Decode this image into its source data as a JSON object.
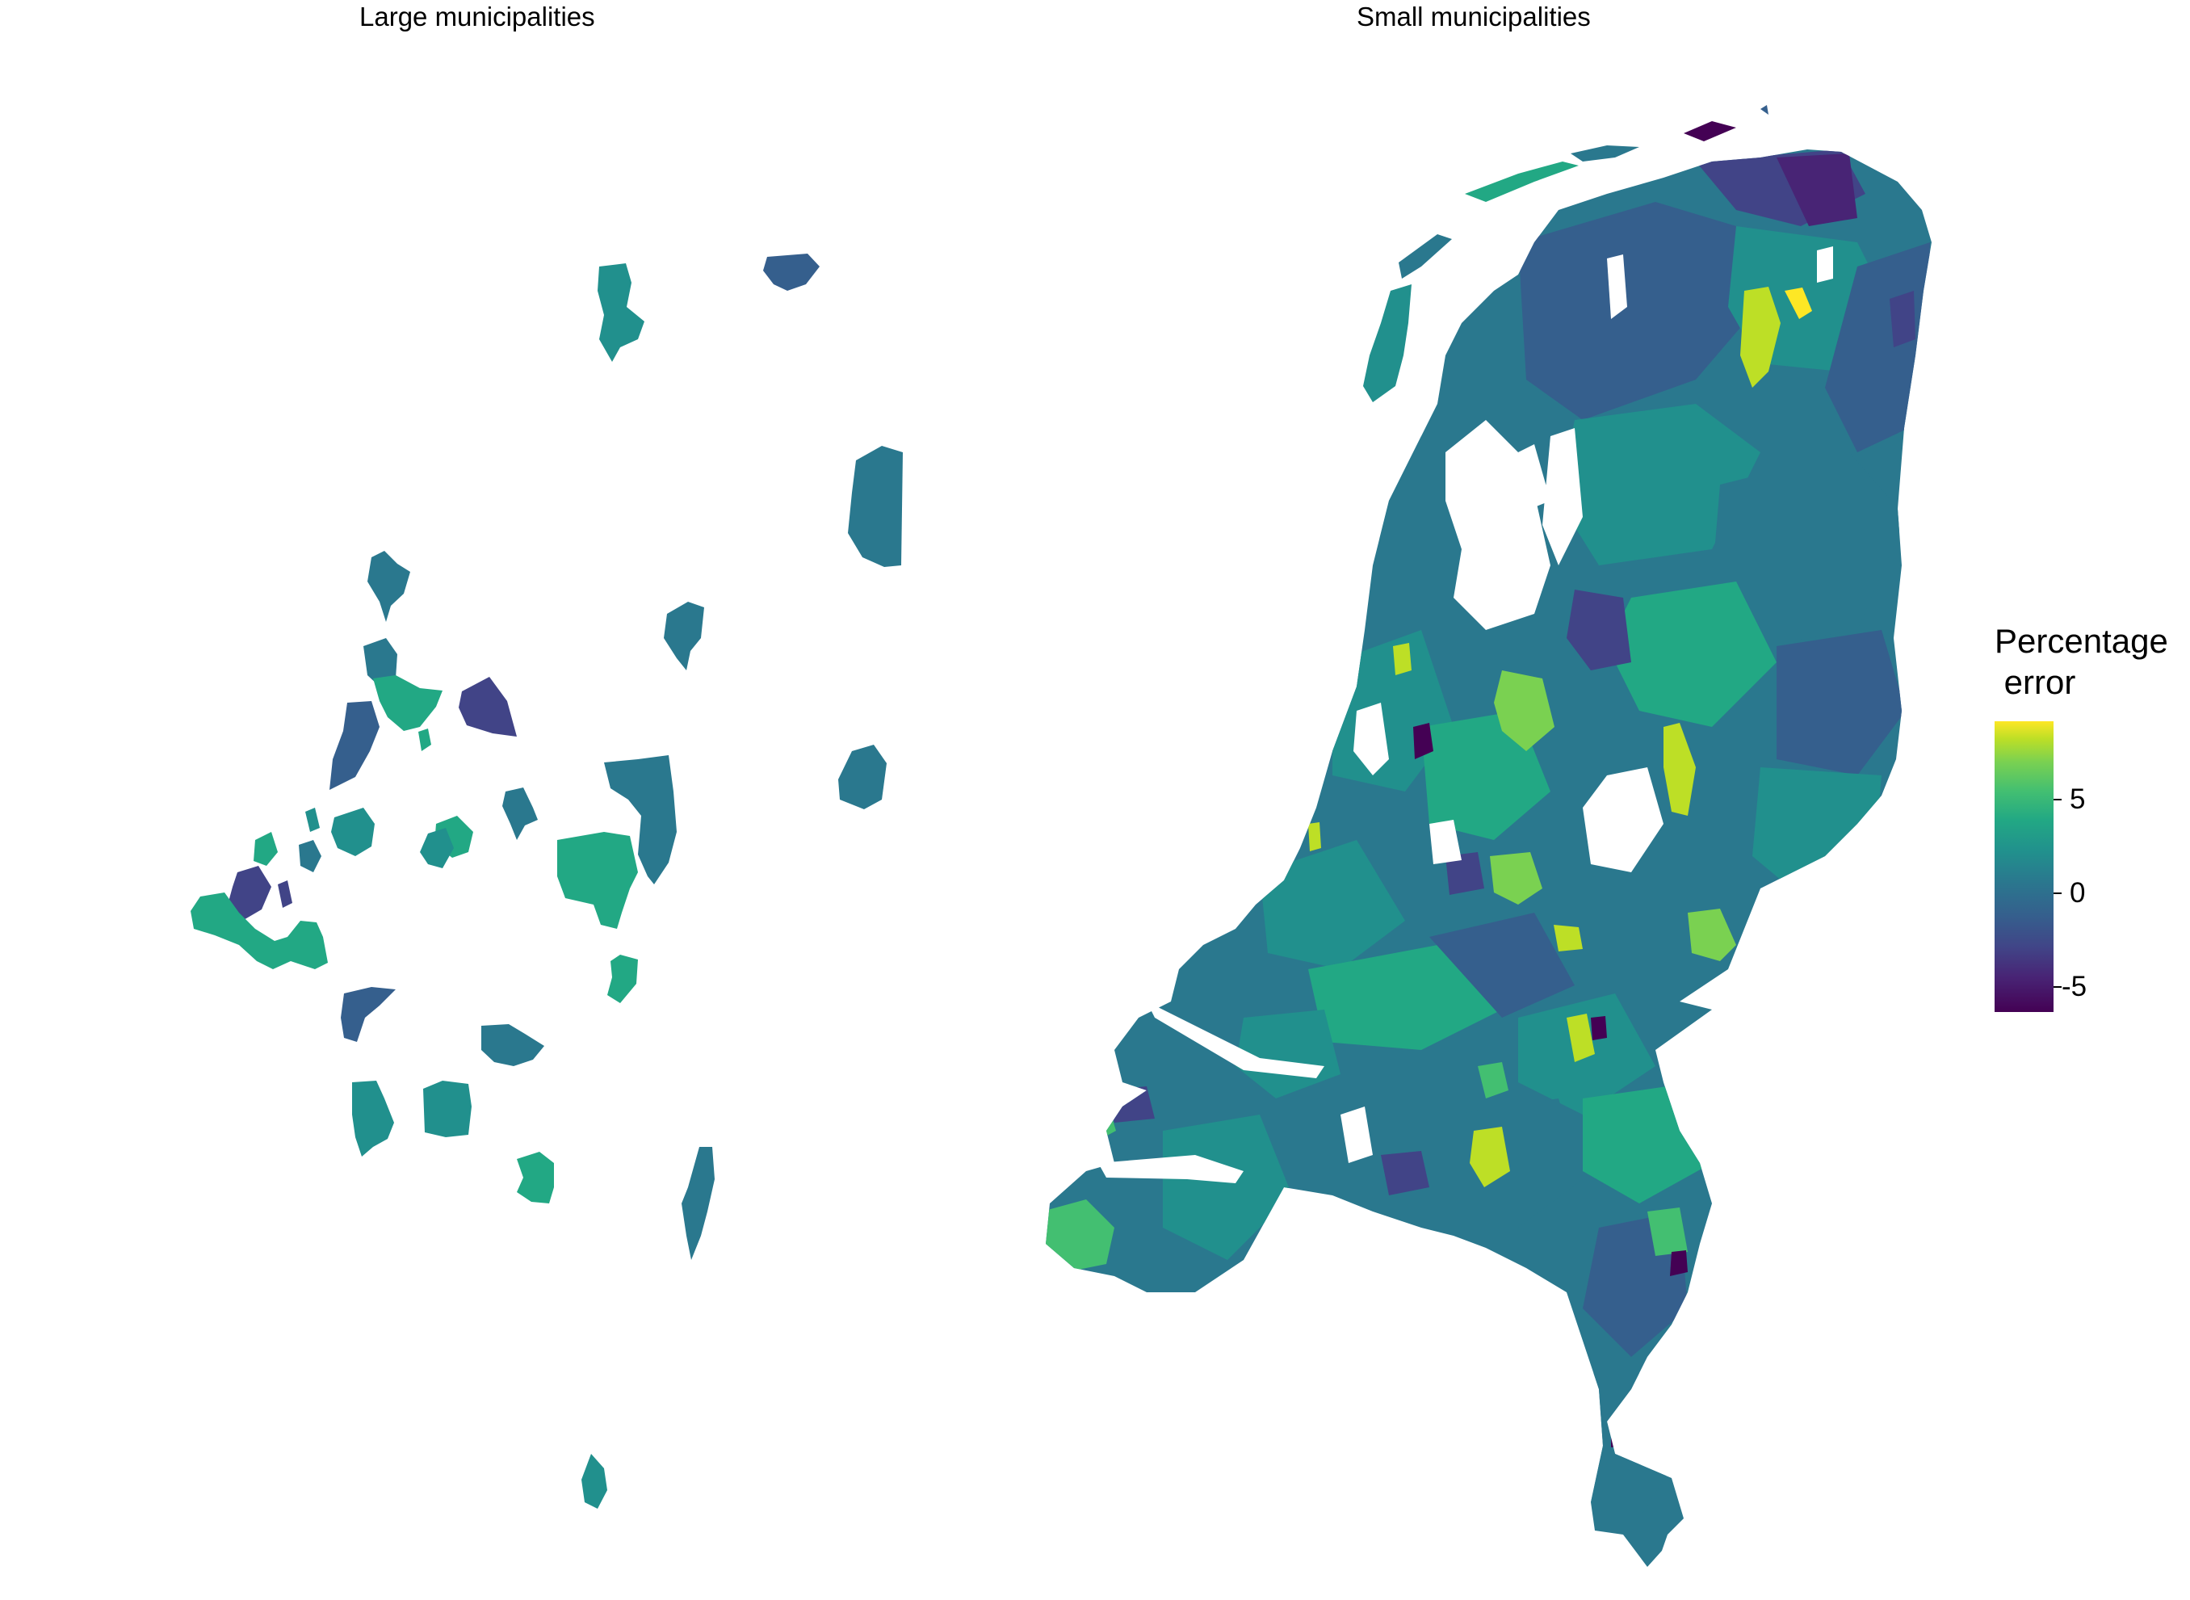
{
  "panels": {
    "large": {
      "title": "Large municipalities"
    },
    "small": {
      "title": "Small municipalities"
    }
  },
  "legend": {
    "title_line1": "Percentage",
    "title_line2": " error",
    "ticks": [
      {
        "value": 5,
        "label": "5"
      },
      {
        "value": 0,
        "label": "0"
      },
      {
        "value": -5,
        "label": "-5"
      }
    ],
    "range": [
      -6.5,
      9
    ],
    "palette": [
      "#440154",
      "#482475",
      "#414487",
      "#355f8d",
      "#2a788e",
      "#21908d",
      "#22a884",
      "#43bf71",
      "#7ad151",
      "#bddf26",
      "#fde725"
    ]
  },
  "colors": {
    "background": "#ffffff",
    "region_border": "none"
  },
  "chart_data": {
    "type": "choropleth",
    "fill_variable": "Percentage error",
    "color_scale": "viridis",
    "panels": [
      "Large municipalities",
      "Small municipalities"
    ]
  }
}
